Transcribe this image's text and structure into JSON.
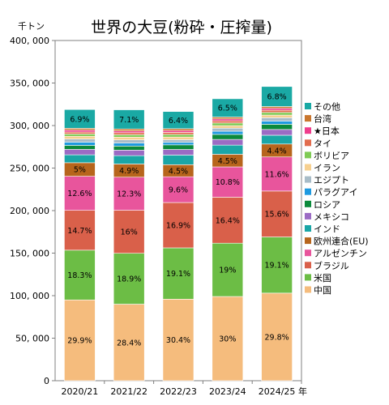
{
  "chart_data": {
    "type": "bar",
    "stacked": true,
    "title": "世界の大豆(粉砕・圧搾量)",
    "ylabel": "千トン",
    "xlabel": "年",
    "ylim": [
      0,
      400000
    ],
    "yticks": [
      0,
      50000,
      100000,
      150000,
      200000,
      250000,
      300000,
      350000,
      400000
    ],
    "ytick_labels": [
      "0",
      "50, 000",
      "100, 000",
      "150, 000",
      "200, 000",
      "250, 000",
      "300, 000",
      "350, 000",
      "400, 000"
    ],
    "grid": false,
    "legend_position": "right",
    "categories": [
      "2020/21",
      "2021/22",
      "2022/23",
      "2023/24",
      "2024/25"
    ],
    "totals": [
      318500,
      316500,
      315500,
      330000,
      346000
    ],
    "series": [
      {
        "name": "中国",
        "color": "#f5bc7d",
        "values": [
          95000,
          90000,
          95900,
          99000,
          103000
        ],
        "labels": [
          "29.9%",
          "28.4%",
          "30.4%",
          "30%",
          "29.8%"
        ]
      },
      {
        "name": "米国",
        "color": "#6cbd45",
        "values": [
          58500,
          59800,
          60300,
          62700,
          66000
        ],
        "labels": [
          "18.3%",
          "18.9%",
          "19.1%",
          "19%",
          "19.1%"
        ]
      },
      {
        "name": "ブラジル",
        "color": "#d9604a",
        "values": [
          46800,
          50600,
          53300,
          54100,
          54000
        ],
        "labels": [
          "14.7%",
          "16%",
          "16.9%",
          "16.4%",
          "15.6%"
        ]
      },
      {
        "name": "アルゼンチン",
        "color": "#e8559c",
        "values": [
          40100,
          38900,
          30300,
          35600,
          40100
        ],
        "labels": [
          "12.6%",
          "12.3%",
          "9.6%",
          "10.8%",
          "11.6%"
        ]
      },
      {
        "name": "欧州連合(EU)",
        "color": "#b7651c",
        "values": [
          15900,
          15500,
          14200,
          14800,
          15200
        ],
        "labels": [
          "5%",
          "4.9%",
          "4.5%",
          "4.5%",
          "4.4%"
        ]
      },
      {
        "name": "インド",
        "color": "#1aa6a6",
        "values": [
          9300,
          9800,
          11300,
          10800,
          10300
        ],
        "labels": []
      },
      {
        "name": "メキシコ",
        "color": "#9b6bc4",
        "values": [
          6400,
          6500,
          6600,
          6700,
          6800
        ],
        "labels": []
      },
      {
        "name": "ロシア",
        "color": "#0b8a3b",
        "values": [
          4700,
          4800,
          5400,
          5900,
          6100
        ],
        "labels": []
      },
      {
        "name": "パラグアイ",
        "color": "#1e9ae0",
        "values": [
          3800,
          3500,
          2900,
          3700,
          3800
        ],
        "labels": []
      },
      {
        "name": "エジプト",
        "color": "#a8bcc8",
        "values": [
          3600,
          3800,
          3200,
          3600,
          3900
        ],
        "labels": []
      },
      {
        "name": "イラン",
        "color": "#f7d090",
        "values": [
          3300,
          3200,
          3100,
          3000,
          3100
        ],
        "labels": []
      },
      {
        "name": "ボリビア",
        "color": "#7fcb55",
        "values": [
          2700,
          2800,
          3000,
          3100,
          3100
        ],
        "labels": []
      },
      {
        "name": "タイ",
        "color": "#e26d4e",
        "values": [
          2300,
          2400,
          2500,
          2600,
          2700
        ],
        "labels": []
      },
      {
        "name": "★日本",
        "color": "#ef3d8c",
        "values": [
          2300,
          2100,
          2100,
          2200,
          2200
        ],
        "labels": []
      },
      {
        "name": "台湾",
        "color": "#c9762e",
        "values": [
          2100,
          2300,
          2200,
          2200,
          2100
        ],
        "labels": []
      },
      {
        "name": "その他",
        "color": "#1aa9a4",
        "values": [
          22000,
          22500,
          20200,
          21500,
          23500
        ],
        "labels": [
          "6.9%",
          "7.1%",
          "6.4%",
          "6.5%",
          "6.8%"
        ]
      }
    ]
  }
}
